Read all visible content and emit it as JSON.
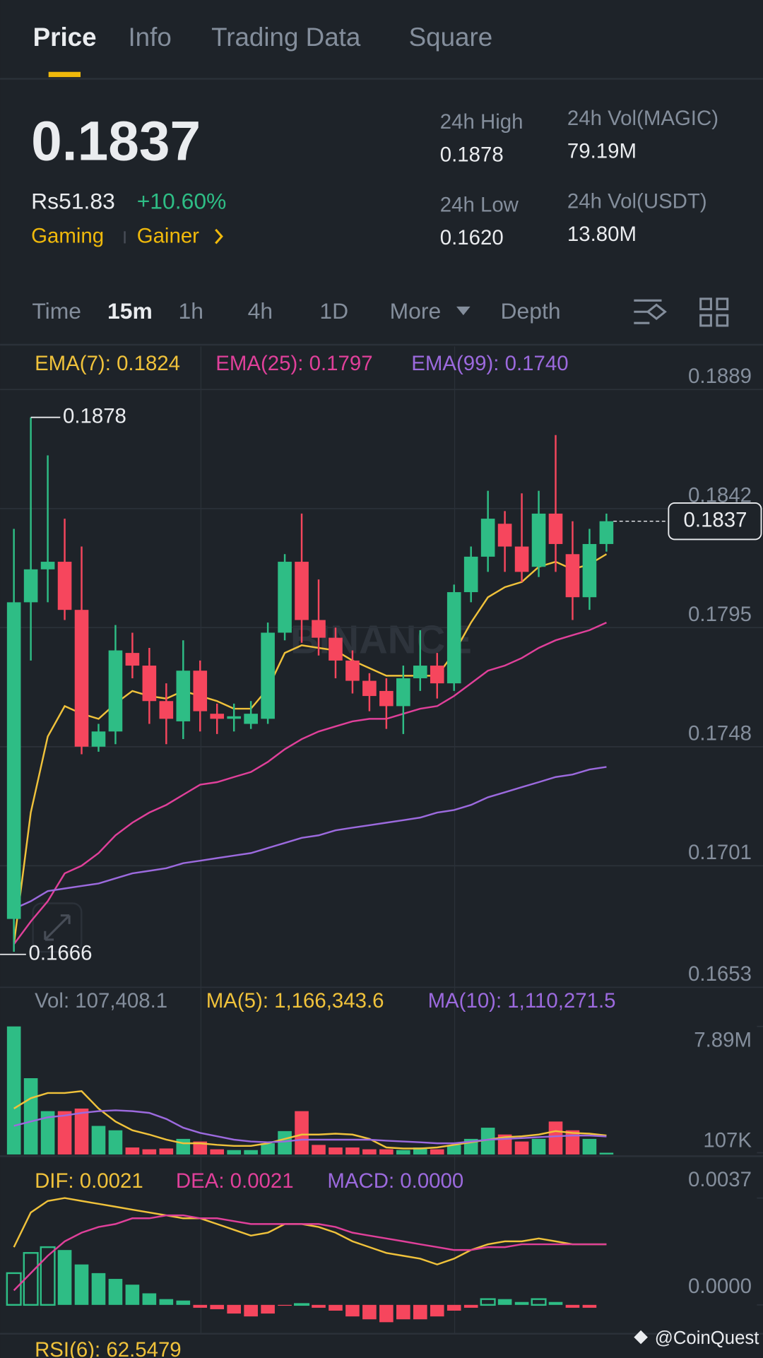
{
  "header": {
    "tabs": [
      "Price",
      "Info",
      "Trading Data",
      "Square"
    ]
  },
  "ticker": {
    "last": "0.1837",
    "fiat": "Rs51.83",
    "change": "+10.60%",
    "tags": [
      "Gaming",
      "Gainer"
    ]
  },
  "stats": [
    {
      "label": "24h High",
      "value": "0.1878"
    },
    {
      "label": "24h Low",
      "value": "0.1620"
    },
    {
      "label": "24h Vol(MAGIC)",
      "value": "79.19M"
    },
    {
      "label": "24h Vol(USDT)",
      "value": "13.80M"
    }
  ],
  "intervals": [
    "Time",
    "15m",
    "1h",
    "4h",
    "1D",
    "More",
    "Depth"
  ],
  "price_chart": {
    "type": "candlestick",
    "up_color": "#2ebd85",
    "down_color": "#f6465d",
    "ylim": [
      0.1653,
      0.1906
    ],
    "yticks": [
      0.1889,
      0.1842,
      0.1795,
      0.1748,
      0.1701,
      0.1653
    ],
    "open": [
      0.168,
      0.1805,
      0.1818,
      0.1821,
      0.1802,
      0.1748,
      0.1754,
      0.1785,
      0.178,
      0.1766,
      0.1758,
      0.1778,
      0.1761,
      0.1759,
      0.1757,
      0.1759,
      0.1793,
      0.1821,
      0.1798,
      0.1791,
      0.1782,
      0.1774,
      0.177,
      0.1764,
      0.1775,
      0.178,
      0.1773,
      0.1809,
      0.1823,
      0.1836,
      0.1827,
      0.1819,
      0.184,
      0.1824,
      0.1807,
      0.1828
    ],
    "high": [
      0.1834,
      0.1878,
      0.1863,
      0.1838,
      0.1827,
      0.1757,
      0.1796,
      0.1793,
      0.1787,
      0.1773,
      0.179,
      0.1782,
      0.1765,
      0.1765,
      0.1766,
      0.1797,
      0.1824,
      0.184,
      0.1814,
      0.1795,
      0.1786,
      0.1777,
      0.1775,
      0.178,
      0.1794,
      0.1785,
      0.1812,
      0.1827,
      0.1849,
      0.1841,
      0.1848,
      0.1849,
      0.1871,
      0.1837,
      0.1834,
      0.184
    ],
    "low": [
      0.1667,
      0.1782,
      0.1805,
      0.1798,
      0.1745,
      0.1746,
      0.1749,
      0.1775,
      0.1757,
      0.1749,
      0.1751,
      0.1754,
      0.1753,
      0.1754,
      0.1755,
      0.1757,
      0.179,
      0.1789,
      0.1784,
      0.1775,
      0.1769,
      0.1762,
      0.1755,
      0.1753,
      0.177,
      0.1767,
      0.177,
      0.1805,
      0.1817,
      0.1817,
      0.1813,
      0.1815,
      0.1817,
      0.1798,
      0.1802,
      0.1825
    ],
    "close": [
      0.1805,
      0.1818,
      0.1821,
      0.1802,
      0.1748,
      0.1754,
      0.1786,
      0.178,
      0.1766,
      0.1759,
      0.1778,
      0.1762,
      0.1759,
      0.176,
      0.1761,
      0.1793,
      0.1821,
      0.1798,
      0.1791,
      0.1782,
      0.1774,
      0.1768,
      0.1764,
      0.1775,
      0.178,
      0.1773,
      0.1809,
      0.1823,
      0.1838,
      0.1827,
      0.1817,
      0.184,
      0.1828,
      0.1807,
      0.1828,
      0.1837
    ],
    "series": [
      {
        "label": "EMA(7): 0.1824",
        "color": "#f0c23b",
        "values": [
          0.167,
          0.1722,
          0.1752,
          0.1764,
          0.1761,
          0.1759,
          0.1765,
          0.177,
          0.1768,
          0.1767,
          0.177,
          0.1768,
          0.1766,
          0.1763,
          0.1763,
          0.1771,
          0.1785,
          0.1788,
          0.1787,
          0.1786,
          0.1782,
          0.1779,
          0.1776,
          0.1776,
          0.1776,
          0.1776,
          0.1785,
          0.1797,
          0.1807,
          0.1811,
          0.1813,
          0.1819,
          0.1821,
          0.1818,
          0.182,
          0.1824
        ]
      },
      {
        "label": "EMA(25): 0.1797",
        "color": "#e0409a",
        "values": [
          0.167,
          0.1679,
          0.1687,
          0.1698,
          0.1701,
          0.1706,
          0.1713,
          0.1718,
          0.1722,
          0.1725,
          0.1729,
          0.1733,
          0.1734,
          0.1736,
          0.1738,
          0.1742,
          0.1747,
          0.1751,
          0.1754,
          0.1756,
          0.1758,
          0.1759,
          0.1759,
          0.1761,
          0.1763,
          0.1764,
          0.1768,
          0.1773,
          0.1778,
          0.178,
          0.1783,
          0.1787,
          0.179,
          0.1792,
          0.1794,
          0.1797
        ]
      },
      {
        "label": "EMA(99): 0.1740",
        "color": "#9c6ade",
        "values": [
          0.1684,
          0.1687,
          0.1691,
          0.1692,
          0.1693,
          0.1694,
          0.1696,
          0.1698,
          0.1699,
          0.17,
          0.1702,
          0.1703,
          0.1704,
          0.1705,
          0.1706,
          0.1708,
          0.171,
          0.1712,
          0.1713,
          0.1715,
          0.1716,
          0.1717,
          0.1718,
          0.1719,
          0.172,
          0.1722,
          0.1723,
          0.1725,
          0.1728,
          0.173,
          0.1732,
          0.1734,
          0.1736,
          0.1737,
          0.1739,
          0.174
        ]
      }
    ],
    "high_label": 0.1878,
    "low_label": 0.1666,
    "last_price": 0.1837
  },
  "volume_chart": {
    "type": "bar",
    "label": "Vol: 107,408.1",
    "ylim": [
      0,
      10300000
    ],
    "yticks": [
      {
        "value": 7890000,
        "label": "7.89M"
      },
      {
        "value": 107000,
        "label": "107K"
      }
    ],
    "values": [
      7890000,
      4700000,
      2670000,
      2670000,
      2830000,
      1760000,
      1490000,
      430000,
      320000,
      370000,
      960000,
      800000,
      320000,
      270000,
      270000,
      690000,
      1440000,
      2670000,
      590000,
      430000,
      430000,
      320000,
      320000,
      270000,
      430000,
      320000,
      590000,
      960000,
      1650000,
      1230000,
      800000,
      960000,
      2030000,
      1490000,
      960000,
      107408.1
    ],
    "series": [
      {
        "label": "MA(5): 1,166,343.6",
        "color": "#f0c23b",
        "values": [
          2830000,
          3470000,
          3790000,
          3790000,
          3900000,
          2830000,
          2030000,
          1490000,
          1230000,
          910000,
          690000,
          690000,
          590000,
          530000,
          530000,
          690000,
          960000,
          1230000,
          1230000,
          1280000,
          1230000,
          960000,
          430000,
          370000,
          370000,
          430000,
          590000,
          750000,
          910000,
          1070000,
          1120000,
          1230000,
          1440000,
          1330000,
          1280000,
          1166343.6
        ]
      },
      {
        "label": "MA(10): 1,110,271.5",
        "color": "#9c6ade",
        "values": [
          1760000,
          2030000,
          2290000,
          2400000,
          2560000,
          2670000,
          2720000,
          2670000,
          2560000,
          2190000,
          1650000,
          1330000,
          1120000,
          910000,
          800000,
          750000,
          800000,
          910000,
          910000,
          910000,
          910000,
          910000,
          850000,
          800000,
          750000,
          690000,
          690000,
          800000,
          910000,
          960000,
          1010000,
          1070000,
          1120000,
          1170000,
          1170000,
          1110271.5
        ]
      }
    ]
  },
  "macd_chart": {
    "type": "macd",
    "label": "MACD: 0.0000",
    "ylim": [
      -0.0007,
      0.005
    ],
    "yticks": [
      {
        "value": 0.0037,
        "label": "0.0037"
      },
      {
        "value": 0,
        "label": "0.0000"
      }
    ],
    "histogram": [
      0.0011,
      0.0018,
      0.002,
      0.0019,
      0.0014,
      0.0011,
      0.0009,
      0.0007,
      0.0004,
      0.0002,
      0.00015,
      -0.0001,
      -0.00015,
      -0.0003,
      -0.0004,
      -0.0003,
      -3e-05,
      3e-05,
      -0.0001,
      -0.0002,
      -0.0004,
      -0.0005,
      -0.0006,
      -0.0005,
      -0.0005,
      -0.0004,
      -0.0002,
      -0.0001,
      0.0002,
      0.0002,
      0.0001,
      0.0002,
      0.0001,
      -0.0001,
      -0.0001,
      0
    ],
    "series": [
      {
        "label": "DIF: 0.0021",
        "color": "#f0c23b",
        "values": [
          0.002,
          0.0032,
          0.0036,
          0.0037,
          0.0036,
          0.0035,
          0.0034,
          0.0033,
          0.0032,
          0.0031,
          0.003,
          0.003,
          0.0028,
          0.0026,
          0.0024,
          0.0025,
          0.0028,
          0.0028,
          0.0027,
          0.0025,
          0.0022,
          0.002,
          0.0018,
          0.0017,
          0.0016,
          0.0014,
          0.0016,
          0.0019,
          0.0021,
          0.0022,
          0.0022,
          0.0023,
          0.0022,
          0.0021,
          0.0021,
          0.0021
        ]
      },
      {
        "label": "DEA: 0.0021",
        "color": "#e0409a",
        "values": [
          0.0005,
          0.0011,
          0.0017,
          0.0022,
          0.0025,
          0.0027,
          0.0028,
          0.003,
          0.003,
          0.0031,
          0.0031,
          0.003,
          0.003,
          0.0029,
          0.0028,
          0.0028,
          0.0028,
          0.0028,
          0.0028,
          0.0027,
          0.0025,
          0.0024,
          0.0023,
          0.0022,
          0.0021,
          0.002,
          0.0019,
          0.0019,
          0.002,
          0.002,
          0.0021,
          0.0021,
          0.0021,
          0.0021,
          0.0021,
          0.0021
        ]
      }
    ]
  },
  "rsi": {
    "label": "RSI(6): 62.5479"
  },
  "watermarks": {
    "exchange": "BINANCE",
    "source": "@CoinQuest"
  }
}
